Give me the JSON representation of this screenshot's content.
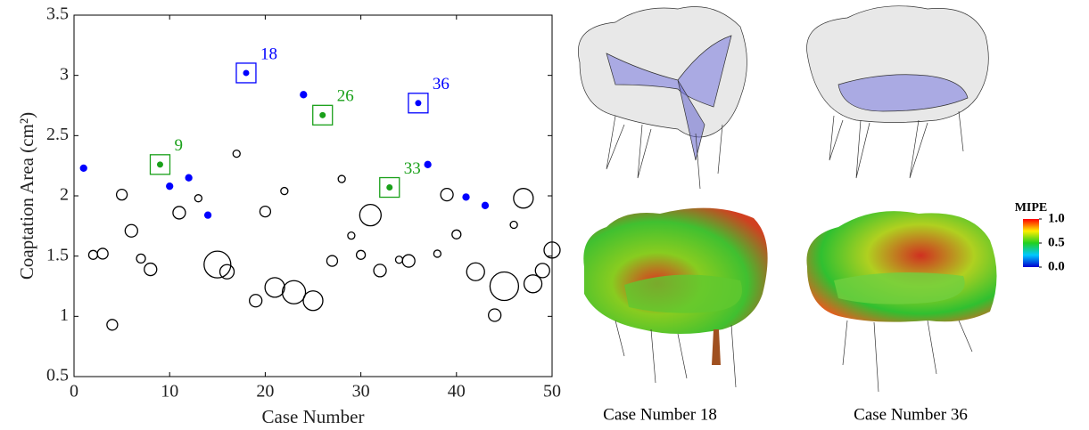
{
  "chart_data": {
    "type": "scatter",
    "xlabel": "Case Number",
    "ylabel": "Coaptation Area (cm²)",
    "xlim": [
      0,
      50
    ],
    "xticks": [
      0,
      10,
      20,
      30,
      40,
      50
    ],
    "ylim": [
      0.5,
      3.5
    ],
    "yticks": [
      0.5,
      1,
      1.5,
      2,
      2.5,
      3,
      3.5
    ],
    "series": [
      {
        "color": "#000000",
        "filled": false,
        "x": [
          2,
          3,
          4,
          5,
          6,
          7,
          8,
          11,
          13,
          15,
          16,
          17,
          19,
          20,
          21,
          22,
          23,
          25,
          27,
          28,
          29,
          30,
          31,
          32,
          34,
          35,
          38,
          39,
          40,
          42,
          44,
          45,
          46,
          47,
          48,
          49,
          50
        ],
        "values": [
          1.51,
          1.52,
          0.93,
          2.01,
          1.71,
          1.48,
          1.39,
          1.86,
          1.98,
          1.43,
          1.37,
          2.35,
          1.13,
          1.87,
          1.24,
          2.04,
          1.2,
          1.13,
          1.46,
          2.14,
          1.67,
          1.51,
          1.84,
          1.38,
          1.47,
          1.46,
          1.52,
          2.01,
          1.68,
          1.37,
          1.01,
          1.25,
          1.76,
          1.98,
          1.27,
          1.38,
          1.55
        ],
        "sizes": [
          5,
          6,
          6,
          6,
          7,
          5,
          7,
          7,
          4,
          15,
          8,
          4,
          7,
          6,
          11,
          4,
          13,
          11,
          6,
          4,
          4,
          5,
          12,
          7,
          4,
          7,
          4,
          7,
          5,
          10,
          7,
          16,
          4,
          11,
          10,
          8,
          9
        ]
      },
      {
        "color": "#0000ff",
        "filled": true,
        "x": [
          1,
          10,
          12,
          14,
          24,
          37,
          41,
          43
        ],
        "values": [
          2.23,
          2.08,
          2.15,
          1.84,
          2.84,
          2.26,
          1.99,
          1.92
        ]
      }
    ],
    "highlights": [
      {
        "label": "9",
        "x": 9,
        "y": 2.26,
        "color": "#1aa01a"
      },
      {
        "label": "18",
        "x": 18,
        "y": 3.02,
        "color": "#0000ff"
      },
      {
        "label": "26",
        "x": 26,
        "y": 2.67,
        "color": "#1aa01a"
      },
      {
        "label": "33",
        "x": 33,
        "y": 2.07,
        "color": "#1aa01a"
      },
      {
        "label": "36",
        "x": 36,
        "y": 2.77,
        "color": "#0000ff"
      }
    ],
    "colorbar": {
      "title": "MIPE",
      "ticks": [
        {
          "value": 1,
          "label": "1.0"
        },
        {
          "value": 0.5,
          "label": "0.5"
        },
        {
          "value": 0,
          "label": "0.0"
        }
      ],
      "lim": [
        0,
        1
      ]
    },
    "captions": [
      "Case Number 18",
      "Case Number 36"
    ]
  }
}
